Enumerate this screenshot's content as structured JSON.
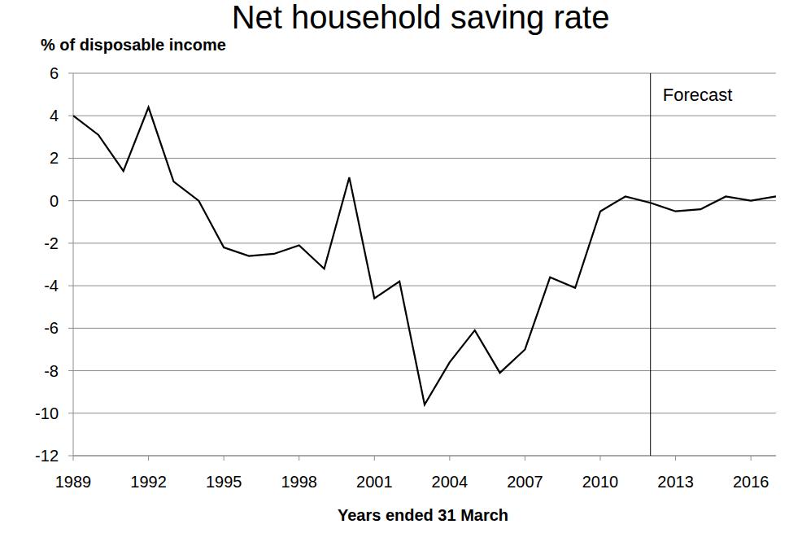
{
  "chart_data": {
    "type": "line",
    "title": "Net household saving rate",
    "y_label": "% of disposable income",
    "x_label": "Years ended 31 March",
    "x": [
      1989,
      1990,
      1991,
      1992,
      1993,
      1994,
      1995,
      1996,
      1997,
      1998,
      1999,
      2000,
      2001,
      2002,
      2003,
      2004,
      2005,
      2006,
      2007,
      2008,
      2009,
      2010,
      2011,
      2012,
      2013,
      2014,
      2015,
      2016,
      2017
    ],
    "values": [
      4.0,
      3.1,
      1.4,
      4.4,
      0.9,
      0.0,
      -2.2,
      -2.6,
      -2.5,
      -2.1,
      -3.2,
      1.1,
      -4.6,
      -3.8,
      -9.6,
      -7.6,
      -6.1,
      -8.1,
      -7.0,
      -3.6,
      -4.1,
      -0.5,
      0.2,
      -0.1,
      -0.5,
      -0.4,
      0.2,
      0.0,
      0.2
    ],
    "color": "#000000",
    "xlim": [
      1989,
      2017
    ],
    "xticks": [
      1989,
      1992,
      1995,
      1998,
      2001,
      2004,
      2007,
      2010,
      2013,
      2016
    ],
    "ylim": [
      -12,
      6
    ],
    "yticks": [
      -12,
      -10,
      -8,
      -6,
      -4,
      -2,
      0,
      2,
      4,
      6
    ],
    "grid": true,
    "annotations": [
      {
        "text": "Forecast",
        "x": 2012
      }
    ]
  }
}
